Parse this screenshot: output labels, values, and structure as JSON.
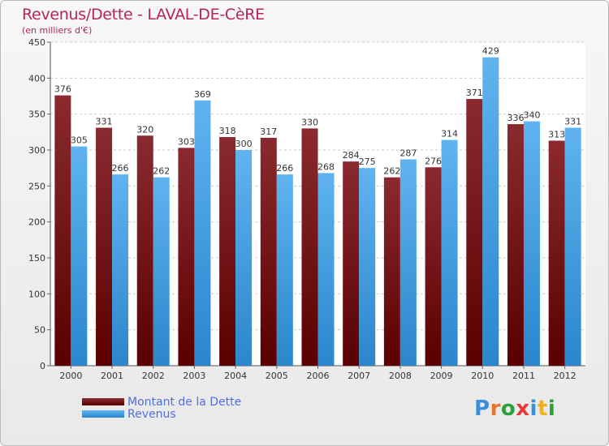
{
  "chart_data": {
    "type": "bar",
    "title": "Revenus/Dette - LAVAL-DE-CèRE",
    "subtitle": "(en milliers d'€)",
    "categories": [
      "2000",
      "2001",
      "2002",
      "2003",
      "2004",
      "2005",
      "2006",
      "2007",
      "2008",
      "2009",
      "2010",
      "2011",
      "2012"
    ],
    "series": [
      {
        "name": "Montant de la Dette",
        "color": "#7a1418",
        "values": [
          376,
          331,
          320,
          303,
          318,
          317,
          330,
          284,
          262,
          276,
          371,
          336,
          313
        ]
      },
      {
        "name": "Revenus",
        "color": "#4ca6e8",
        "values": [
          305,
          266,
          262,
          369,
          300,
          266,
          268,
          275,
          287,
          314,
          429,
          340,
          331
        ]
      }
    ],
    "ylim": [
      0,
      450
    ],
    "yticks": [
      0,
      50,
      100,
      150,
      200,
      250,
      300,
      350,
      400,
      450
    ],
    "grid": true,
    "legend": "bottom-left"
  },
  "logo": {
    "name": "proxiti-logo",
    "letters": [
      "P",
      "r",
      "o",
      "x",
      "i",
      "t",
      "i"
    ],
    "colors": [
      "#3a8fd8",
      "#e8742a",
      "#2c9f3a",
      "#e23a3a",
      "#3a8fd8",
      "#f0b020",
      "#2c9f3a"
    ]
  }
}
